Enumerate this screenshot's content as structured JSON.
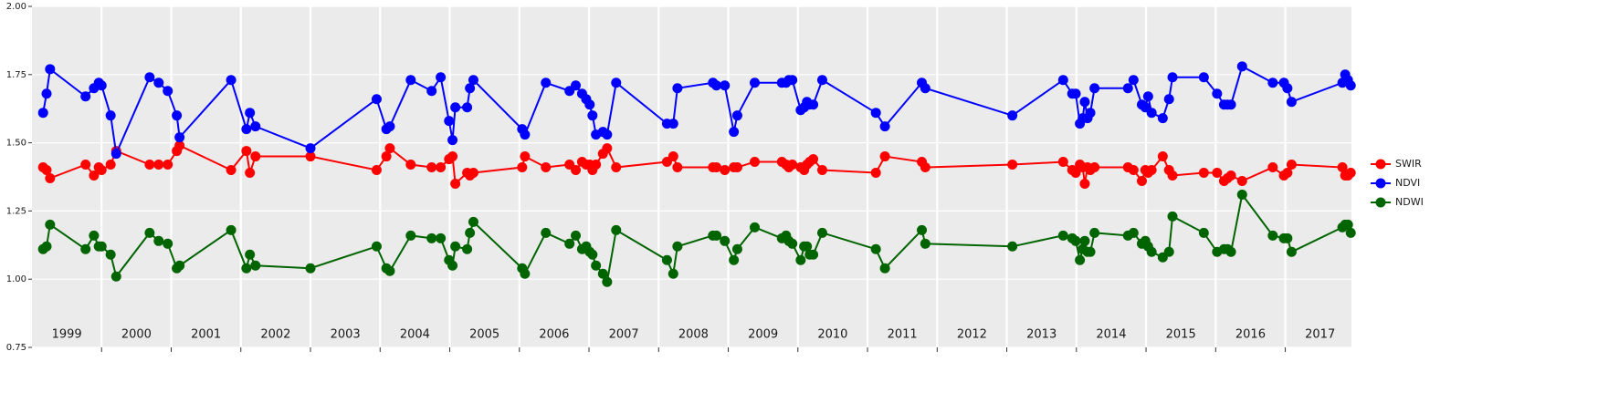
{
  "chart_data": {
    "type": "line",
    "x": [
      1999.16,
      1999.21,
      1999.26,
      1999.77,
      1999.89,
      1999.96,
      2000.0,
      2000.13,
      2000.21,
      2000.69,
      2000.82,
      2000.95,
      2001.08,
      2001.12,
      2001.86,
      2002.08,
      2002.13,
      2002.21,
      2003.0,
      2003.95,
      2004.09,
      2004.14,
      2004.44,
      2004.74,
      2004.87,
      2004.99,
      2005.04,
      2005.08,
      2005.25,
      2005.29,
      2005.34,
      2006.04,
      2006.08,
      2006.38,
      2006.72,
      2006.81,
      2006.9,
      2006.96,
      2007.01,
      2007.05,
      2007.1,
      2007.2,
      2007.26,
      2007.39,
      2008.12,
      2008.21,
      2008.27,
      2008.78,
      2008.83,
      2008.95,
      2009.08,
      2009.13,
      2009.38,
      2009.77,
      2009.83,
      2009.87,
      2009.92,
      2010.04,
      2010.09,
      2010.13,
      2010.17,
      2010.22,
      2010.35,
      2011.12,
      2011.25,
      2011.78,
      2011.83,
      2013.08,
      2013.81,
      2013.94,
      2013.99,
      2014.05,
      2014.09,
      2014.12,
      2014.16,
      2014.2,
      2014.26,
      2014.74,
      2014.82,
      2014.94,
      2014.99,
      2015.03,
      2015.08,
      2015.24,
      2015.33,
      2015.38,
      2015.83,
      2016.02,
      2016.12,
      2016.17,
      2016.22,
      2016.38,
      2016.82,
      2016.98,
      2017.03,
      2017.09,
      2017.82,
      2017.86,
      2017.9,
      2017.94
    ],
    "series": [
      {
        "name": "SWIR",
        "color": "#ff0000",
        "values": [
          1.41,
          1.4,
          1.37,
          1.42,
          1.38,
          1.41,
          1.4,
          1.42,
          1.47,
          1.42,
          1.42,
          1.42,
          1.47,
          1.49,
          1.4,
          1.47,
          1.39,
          1.45,
          1.45,
          1.4,
          1.45,
          1.48,
          1.42,
          1.41,
          1.41,
          1.44,
          1.45,
          1.35,
          1.39,
          1.38,
          1.39,
          1.41,
          1.45,
          1.41,
          1.42,
          1.4,
          1.43,
          1.42,
          1.42,
          1.4,
          1.42,
          1.46,
          1.48,
          1.41,
          1.43,
          1.45,
          1.41,
          1.41,
          1.41,
          1.4,
          1.41,
          1.41,
          1.43,
          1.43,
          1.42,
          1.41,
          1.42,
          1.41,
          1.4,
          1.42,
          1.43,
          1.44,
          1.4,
          1.39,
          1.45,
          1.43,
          1.41,
          1.42,
          1.43,
          1.4,
          1.39,
          1.42,
          1.41,
          1.35,
          1.41,
          1.4,
          1.41,
          1.41,
          1.4,
          1.36,
          1.4,
          1.39,
          1.4,
          1.45,
          1.4,
          1.38,
          1.39,
          1.39,
          1.36,
          1.37,
          1.38,
          1.36,
          1.41,
          1.38,
          1.39,
          1.42,
          1.41,
          1.38,
          1.38,
          1.39
        ]
      },
      {
        "name": "NDVI",
        "color": "#0000ff",
        "values": [
          1.61,
          1.68,
          1.77,
          1.67,
          1.7,
          1.72,
          1.71,
          1.6,
          1.46,
          1.74,
          1.72,
          1.69,
          1.6,
          1.52,
          1.73,
          1.55,
          1.61,
          1.56,
          1.48,
          1.66,
          1.55,
          1.56,
          1.73,
          1.69,
          1.74,
          1.58,
          1.51,
          1.63,
          1.63,
          1.7,
          1.73,
          1.55,
          1.53,
          1.72,
          1.69,
          1.71,
          1.68,
          1.66,
          1.64,
          1.6,
          1.53,
          1.54,
          1.53,
          1.72,
          1.57,
          1.57,
          1.7,
          1.72,
          1.71,
          1.71,
          1.54,
          1.6,
          1.72,
          1.72,
          1.72,
          1.73,
          1.73,
          1.62,
          1.63,
          1.65,
          1.64,
          1.64,
          1.73,
          1.61,
          1.56,
          1.72,
          1.7,
          1.6,
          1.73,
          1.68,
          1.68,
          1.57,
          1.59,
          1.65,
          1.59,
          1.61,
          1.7,
          1.7,
          1.73,
          1.64,
          1.63,
          1.67,
          1.61,
          1.59,
          1.66,
          1.74,
          1.74,
          1.68,
          1.64,
          1.64,
          1.64,
          1.78,
          1.72,
          1.72,
          1.7,
          1.65,
          1.72,
          1.75,
          1.73,
          1.71
        ]
      },
      {
        "name": "NDWI",
        "color": "#006400",
        "values": [
          1.11,
          1.12,
          1.2,
          1.11,
          1.16,
          1.12,
          1.12,
          1.09,
          1.01,
          1.17,
          1.14,
          1.13,
          1.04,
          1.05,
          1.18,
          1.04,
          1.09,
          1.05,
          1.04,
          1.12,
          1.04,
          1.03,
          1.16,
          1.15,
          1.15,
          1.07,
          1.05,
          1.12,
          1.11,
          1.17,
          1.21,
          1.04,
          1.02,
          1.17,
          1.13,
          1.16,
          1.11,
          1.12,
          1.1,
          1.09,
          1.05,
          1.02,
          0.99,
          1.18,
          1.07,
          1.02,
          1.12,
          1.16,
          1.16,
          1.14,
          1.07,
          1.11,
          1.19,
          1.15,
          1.16,
          1.14,
          1.13,
          1.07,
          1.12,
          1.12,
          1.09,
          1.09,
          1.17,
          1.11,
          1.04,
          1.18,
          1.13,
          1.12,
          1.16,
          1.15,
          1.14,
          1.07,
          1.11,
          1.14,
          1.1,
          1.1,
          1.17,
          1.16,
          1.17,
          1.13,
          1.14,
          1.12,
          1.1,
          1.08,
          1.1,
          1.23,
          1.17,
          1.1,
          1.11,
          1.11,
          1.1,
          1.31,
          1.16,
          1.15,
          1.15,
          1.1,
          1.19,
          1.2,
          1.2,
          1.17
        ]
      }
    ],
    "xlim": [
      1999.0,
      2017.95
    ],
    "xticks": [
      {
        "value": 1999.5,
        "label": "1999"
      },
      {
        "value": 2000.5,
        "label": "2000"
      },
      {
        "value": 2001.5,
        "label": "2001"
      },
      {
        "value": 2002.5,
        "label": "2002"
      },
      {
        "value": 2003.5,
        "label": "2003"
      },
      {
        "value": 2004.5,
        "label": "2004"
      },
      {
        "value": 2005.5,
        "label": "2005"
      },
      {
        "value": 2006.5,
        "label": "2006"
      },
      {
        "value": 2007.5,
        "label": "2007"
      },
      {
        "value": 2008.5,
        "label": "2008"
      },
      {
        "value": 2009.5,
        "label": "2009"
      },
      {
        "value": 2010.5,
        "label": "2010"
      },
      {
        "value": 2011.5,
        "label": "2011"
      },
      {
        "value": 2012.5,
        "label": "2012"
      },
      {
        "value": 2013.5,
        "label": "2013"
      },
      {
        "value": 2014.5,
        "label": "2014"
      },
      {
        "value": 2015.5,
        "label": "2015"
      },
      {
        "value": 2016.5,
        "label": "2016"
      },
      {
        "value": 2017.5,
        "label": "2017"
      }
    ],
    "xgrid": [
      2000,
      2001,
      2002,
      2003,
      2004,
      2005,
      2006,
      2007,
      2008,
      2009,
      2010,
      2011,
      2012,
      2013,
      2014,
      2015,
      2016,
      2017
    ],
    "ylim": [
      0.75,
      2.0
    ],
    "yticks": [
      {
        "value": 0.75,
        "label": "0.75"
      },
      {
        "value": 1.0,
        "label": "1.00"
      },
      {
        "value": 1.25,
        "label": "1.25"
      },
      {
        "value": 1.5,
        "label": "1.50"
      },
      {
        "value": 1.75,
        "label": "1.75"
      },
      {
        "value": 2.0,
        "label": "2.00"
      }
    ],
    "grid": true,
    "legend": "right"
  }
}
